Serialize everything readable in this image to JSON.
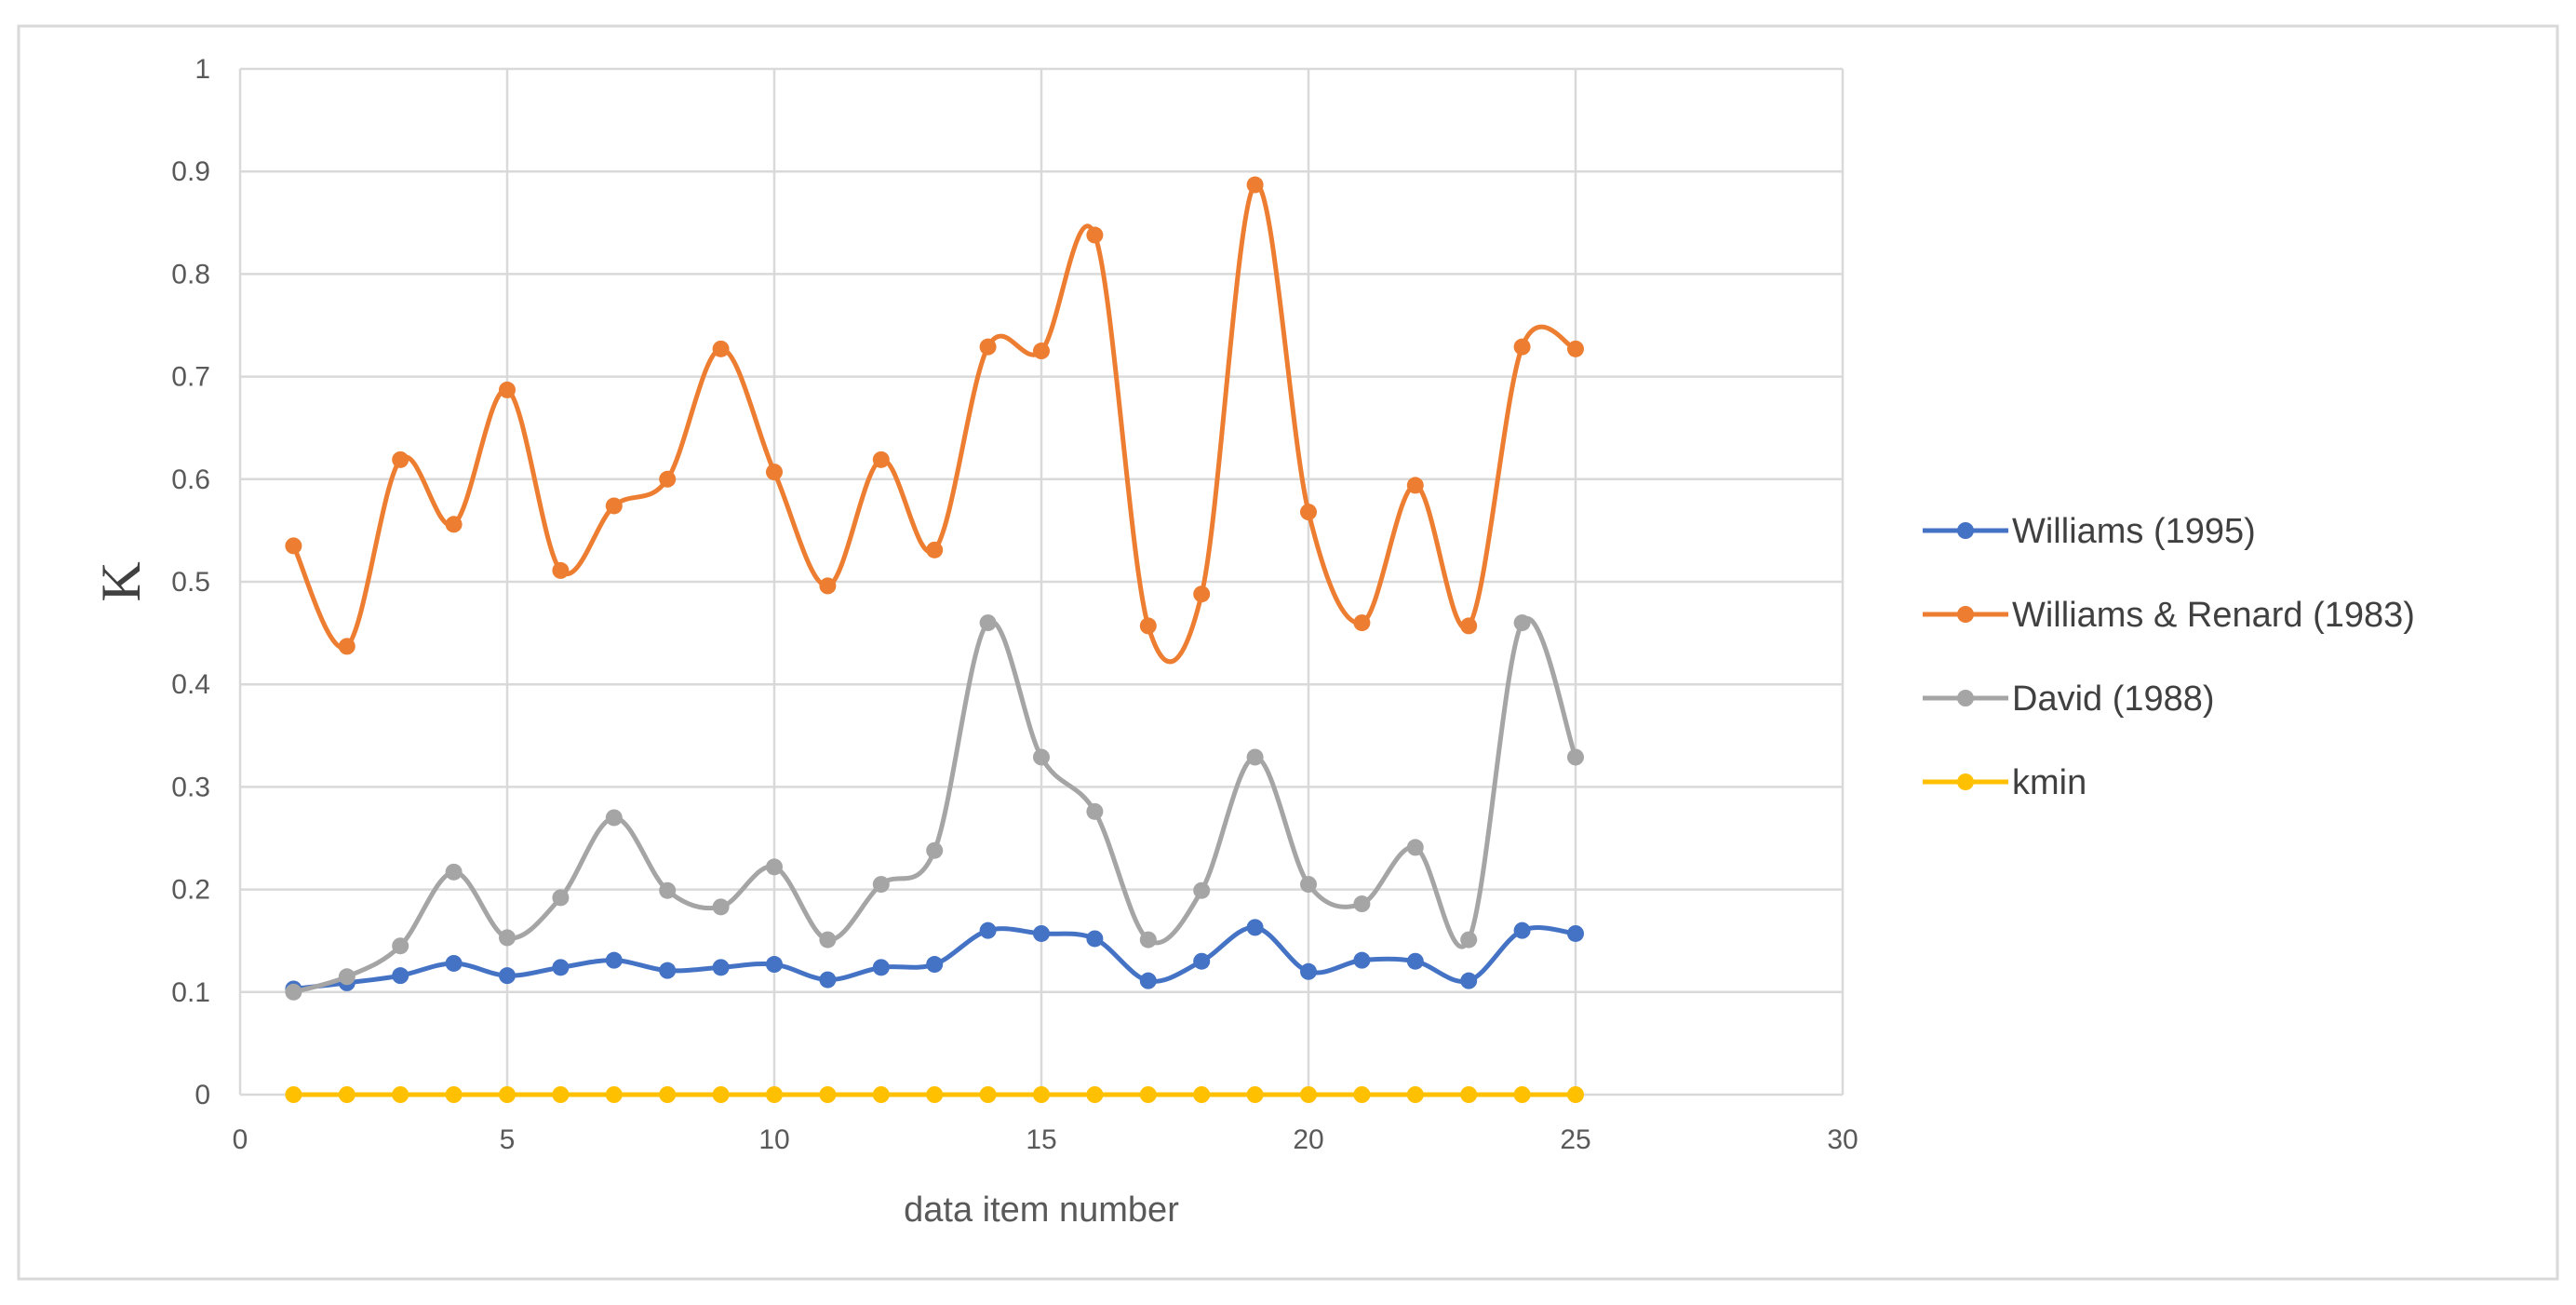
{
  "chart_data": {
    "type": "line",
    "xlabel": "data item number",
    "ylabel": "K",
    "xlim": [
      0,
      30
    ],
    "ylim": [
      0,
      1
    ],
    "x_ticks": [
      0,
      5,
      10,
      15,
      20,
      25,
      30
    ],
    "y_ticks": [
      0,
      0.1,
      0.2,
      0.3,
      0.4,
      0.5,
      0.6,
      0.7,
      0.8,
      0.9,
      1
    ],
    "x_tick_labels": [
      "0",
      "5",
      "10",
      "15",
      "20",
      "25",
      "30"
    ],
    "y_tick_labels": [
      "0",
      "0.1",
      "0.2",
      "0.3",
      "0.4",
      "0.5",
      "0.6",
      "0.7",
      "0.8",
      "0.9",
      "1"
    ],
    "grid": true,
    "legend_position": "right",
    "smooth": true,
    "markers": "circle",
    "x": [
      1,
      2,
      3,
      4,
      5,
      6,
      7,
      8,
      9,
      10,
      11,
      12,
      13,
      14,
      15,
      16,
      17,
      18,
      19,
      20,
      21,
      22,
      23,
      24,
      25
    ],
    "series": [
      {
        "name": "Williams (1995)",
        "color": "#4472c4",
        "values": [
          0.103,
          0.109,
          0.116,
          0.128,
          0.116,
          0.124,
          0.131,
          0.121,
          0.124,
          0.127,
          0.112,
          0.124,
          0.127,
          0.16,
          0.157,
          0.152,
          0.111,
          0.13,
          0.163,
          0.12,
          0.131,
          0.13,
          0.111,
          0.16,
          0.157
        ]
      },
      {
        "name": "Williams & Renard (1983)",
        "color": "#ed7d31",
        "values": [
          0.535,
          0.437,
          0.619,
          0.556,
          0.687,
          0.511,
          0.574,
          0.6,
          0.727,
          0.607,
          0.496,
          0.619,
          0.531,
          0.729,
          0.725,
          0.838,
          0.457,
          0.488,
          0.887,
          0.568,
          0.46,
          0.594,
          0.457,
          0.729,
          0.727
        ]
      },
      {
        "name": "David (1988)",
        "color": "#a5a5a5",
        "values": [
          0.1,
          0.115,
          0.145,
          0.217,
          0.153,
          0.192,
          0.27,
          0.199,
          0.183,
          0.222,
          0.151,
          0.205,
          0.238,
          0.46,
          0.329,
          0.276,
          0.151,
          0.199,
          0.329,
          0.205,
          0.186,
          0.241,
          0.151,
          0.46,
          0.329
        ]
      },
      {
        "name": "kmin",
        "color": "#ffc000",
        "values": [
          0,
          0,
          0,
          0,
          0,
          0,
          0,
          0,
          0,
          0,
          0,
          0,
          0,
          0,
          0,
          0,
          0,
          0,
          0,
          0,
          0,
          0,
          0,
          0,
          0
        ]
      }
    ]
  }
}
